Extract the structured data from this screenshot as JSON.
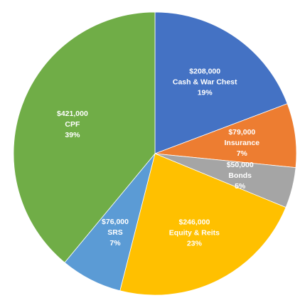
{
  "chart_data": {
    "type": "pie",
    "start_angle_deg": 0,
    "direction": "clockwise",
    "slices": [
      {
        "label": "Cash & War Chest",
        "value": 208000,
        "value_text": "$208,000",
        "percent_text": "19%",
        "color": "#4472C4"
      },
      {
        "label": "Insurance",
        "value": 79000,
        "value_text": "$79,000",
        "percent_text": "7%",
        "color": "#ED7D31"
      },
      {
        "label": "Bonds",
        "value": 50000,
        "value_text": "$50,000",
        "percent_text": "5%",
        "color": "#A5A5A5"
      },
      {
        "label": "Equity & Reits",
        "value": 246000,
        "value_text": "$246,000",
        "percent_text": "23%",
        "color": "#FFC000"
      },
      {
        "label": "SRS",
        "value": 76000,
        "value_text": "$76,000",
        "percent_text": "7%",
        "color": "#5B9BD5"
      },
      {
        "label": "CPF",
        "value": 421000,
        "value_text": "$421,000",
        "percent_text": "39%",
        "color": "#70AD47"
      }
    ]
  }
}
